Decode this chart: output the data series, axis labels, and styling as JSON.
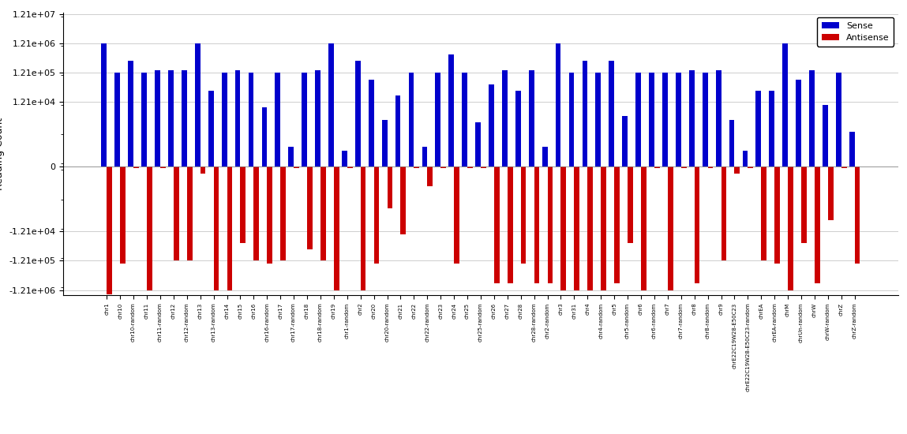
{
  "categories": [
    "chr1",
    "chr10",
    "chr10-random",
    "chr11",
    "chr11-random",
    "chr12",
    "chr12-random",
    "chr13",
    "chr13-random",
    "chr14",
    "chr15",
    "chr16",
    "chr16-random",
    "chr17",
    "chr17-random",
    "chr18",
    "chr18-random",
    "chr19",
    "chr1-random",
    "chr2",
    "chr20",
    "chr20-random",
    "chr21",
    "chr22",
    "chr22-random",
    "chr23",
    "chr24",
    "chr25",
    "chr25-random",
    "chr26",
    "chr27",
    "chr28",
    "chr28-random",
    "chr2-random",
    "chr3",
    "chr31",
    "chr4",
    "chr4-random",
    "chr5",
    "chr5-random",
    "chr6",
    "chr6-random",
    "chr7",
    "chr7-random",
    "chr8",
    "chr8-random",
    "chr9",
    "chrE22C19W28-E50C23",
    "chrE22C19W28-E50C23-random",
    "chrEA",
    "chrEA-random",
    "chrM",
    "chrUn-random",
    "chrW",
    "chrW-random",
    "chrZ",
    "chrZ-random"
  ],
  "sense": [
    1210000,
    121000,
    302000,
    121000,
    151000,
    151000,
    151000,
    1210000,
    30000,
    121000,
    151000,
    121000,
    8000,
    121000,
    600,
    121000,
    151000,
    1210000,
    500,
    302000,
    70000,
    3000,
    20000,
    121000,
    600,
    121000,
    500000,
    121000,
    2500,
    50000,
    151000,
    30000,
    151000,
    600,
    1210000,
    121000,
    302000,
    121000,
    302000,
    4000,
    121000,
    121000,
    121000,
    121000,
    151000,
    121000,
    151000,
    3000,
    500,
    30000,
    30000,
    1210000,
    70000,
    151000,
    10000,
    121000,
    1200
  ],
  "antisense": [
    -1700000,
    -151000,
    -50,
    -1210000,
    -50,
    -121000,
    -121000,
    -200,
    -1210000,
    -1210000,
    -30000,
    -121000,
    -151000,
    -121000,
    -50,
    -50000,
    -121000,
    -1210000,
    -50,
    -1210000,
    -151000,
    -2000,
    -15000,
    -50,
    -600,
    -50,
    -151000,
    -50,
    -50,
    -700000,
    -700000,
    -151000,
    -700000,
    -700000,
    -1210000,
    -1210000,
    -1210000,
    -1210000,
    -700000,
    -30000,
    -1210000,
    -50,
    -1210000,
    -50,
    -700000,
    -50,
    -121000,
    -200,
    -50,
    -121000,
    -151000,
    -1210000,
    -30000,
    -700000,
    -5000,
    -50,
    -151000
  ],
  "sense_color": "#0000CC",
  "antisense_color": "#CC0000",
  "background_color": "#FFFFFF",
  "grid_color": "#BBBBBB",
  "yticks": [
    12100000,
    1210000,
    121000,
    12100,
    0,
    -12100,
    -121000,
    -1210000
  ],
  "ytick_labels": [
    "1.21e+07",
    "1.21e+06",
    "1.21e+05",
    "1.21e+04",
    "0",
    "-1.21e+04",
    "-1.21e+05",
    "-1.21e+06"
  ]
}
